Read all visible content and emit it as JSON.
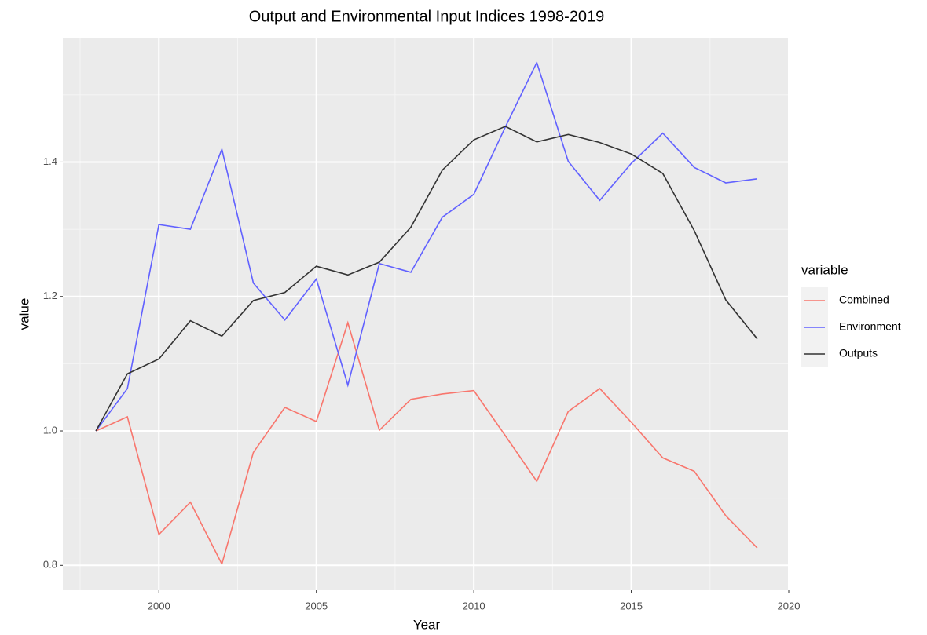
{
  "chart_data": {
    "type": "line",
    "title": "Output and Environmental Input Indices 1998-2019",
    "x_label": "Year",
    "y_label": "value",
    "legend_title": "variable",
    "x": [
      1998,
      1999,
      2000,
      2001,
      2002,
      2003,
      2004,
      2005,
      2006,
      2007,
      2008,
      2009,
      2010,
      2011,
      2012,
      2013,
      2014,
      2015,
      2016,
      2017,
      2018,
      2019
    ],
    "series": [
      {
        "name": "Combined",
        "color": "#f8766d",
        "values": [
          1.0,
          1.021,
          0.846,
          0.894,
          0.802,
          0.968,
          1.035,
          1.014,
          1.161,
          1.001,
          1.047,
          1.055,
          1.06,
          0.993,
          0.925,
          1.029,
          1.063,
          1.013,
          0.96,
          0.94,
          0.874,
          0.826
        ]
      },
      {
        "name": "Environment",
        "color": "#6161ff",
        "values": [
          1.0,
          1.063,
          1.307,
          1.3,
          1.419,
          1.22,
          1.165,
          1.226,
          1.068,
          1.249,
          1.236,
          1.318,
          1.352,
          1.452,
          1.548,
          1.401,
          1.343,
          1.398,
          1.443,
          1.392,
          1.369,
          1.375
        ]
      },
      {
        "name": "Outputs",
        "color": "#333333",
        "values": [
          1.0,
          1.085,
          1.107,
          1.164,
          1.141,
          1.194,
          1.206,
          1.245,
          1.232,
          1.251,
          1.303,
          1.388,
          1.433,
          1.453,
          1.43,
          1.441,
          1.429,
          1.412,
          1.383,
          1.298,
          1.195,
          1.137
        ]
      }
    ],
    "xlim": [
      1996.95,
      2020.05
    ],
    "xticks": [
      2000,
      2005,
      2010,
      2015,
      2020
    ],
    "ylim": [
      0.763,
      1.585
    ],
    "yticks": [
      {
        "value": 0.8,
        "label": "0.8"
      },
      {
        "value": 1.0,
        "label": "1.0"
      },
      {
        "value": 1.2,
        "label": "1.2"
      },
      {
        "value": 1.4,
        "label": "1.4"
      }
    ],
    "x_minor_ticks": [
      1997.5,
      2002.5,
      2007.5,
      2012.5,
      2017.5
    ],
    "y_minor_ticks": [
      0.9,
      1.1,
      1.3,
      1.5
    ],
    "grid": true,
    "legend_position": "right"
  }
}
